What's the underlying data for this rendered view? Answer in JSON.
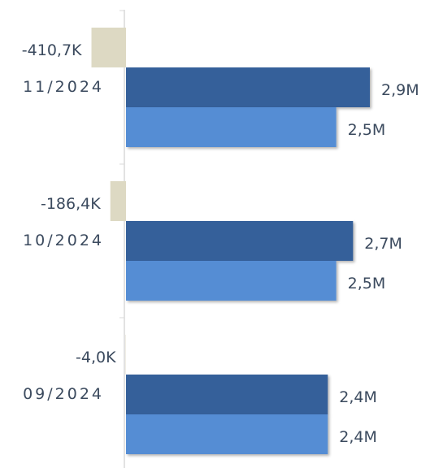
{
  "chart_data": {
    "type": "bar",
    "orientation": "horizontal",
    "categories": [
      "11/2024",
      "10/2024",
      "09/2024"
    ],
    "series": [
      {
        "color": "#ddd9c3",
        "values": [
          -410700,
          -186400,
          -4000
        ],
        "value_labels": [
          "-410,7K",
          "-186,4K",
          "-4,0K"
        ]
      },
      {
        "color": "#35609a",
        "values": [
          2900000,
          2700000,
          2400000
        ],
        "value_labels": [
          "2,9M",
          "2,7M",
          "2,4M"
        ]
      },
      {
        "color": "#548dd4",
        "values": [
          2500000,
          2500000,
          2400000
        ],
        "value_labels": [
          "2,5M",
          "2,5M",
          "2,4M"
        ]
      }
    ]
  }
}
